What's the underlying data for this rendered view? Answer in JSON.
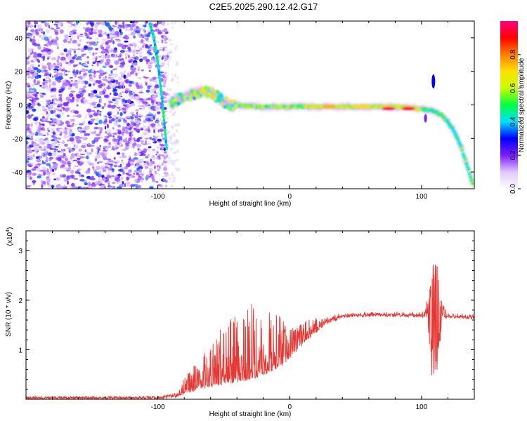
{
  "title": "C2E5.2025.290.12.42.G17",
  "chart_data": [
    {
      "type": "heatmap",
      "name": "spectrogram",
      "xlabel": "Height of straight line (km)",
      "ylabel": "Frequency (Hz)",
      "xlim": [
        -200,
        140
      ],
      "ylim": [
        -50,
        50
      ],
      "xticks": [
        -100,
        0,
        100
      ],
      "yticks": [
        -40,
        -20,
        0,
        20,
        40
      ],
      "colorbar": {
        "label": "Normalized spectral amplitude",
        "range": [
          0,
          1
        ],
        "ticks": [
          "0.0",
          "0.2",
          "0.4",
          "0.6",
          "0.8"
        ],
        "stops": [
          "#ffffff",
          "#e0c8ff",
          "#7a1cff",
          "#0000ff",
          "#00e0ff",
          "#00ff40",
          "#c8ff00",
          "#ffe000",
          "#ff8000",
          "#ff0000",
          "#ff0080"
        ]
      },
      "noise_region_km": [
        -200,
        -96
      ],
      "ridge": {
        "description": "frequency of dominant signal vs height",
        "x": [
          -90,
          -80,
          -70,
          -62,
          -55,
          -50,
          -45,
          -40,
          -30,
          -20,
          -10,
          0,
          20,
          40,
          60,
          80,
          95,
          105,
          110,
          115,
          120,
          125,
          130,
          135,
          139
        ],
        "y": [
          1,
          5,
          7,
          8,
          5,
          2,
          0,
          0,
          -1,
          -1,
          -1,
          -1,
          -1,
          -1,
          -1,
          -1,
          -2,
          -3,
          -4,
          -6,
          -10,
          -16,
          -25,
          -37,
          -48
        ]
      },
      "steep_line": {
        "x": [
          -106,
          -103,
          -100,
          -97,
          -95,
          -93
        ],
        "y": [
          48,
          40,
          25,
          5,
          -12,
          -28
        ]
      },
      "hot_spots": [
        {
          "x": 30,
          "y": -1,
          "amp": 0.75
        },
        {
          "x": 55,
          "y": -1,
          "amp": 0.7
        },
        {
          "x": 75,
          "y": -2,
          "amp": 0.95
        },
        {
          "x": 90,
          "y": -2,
          "amp": 0.9
        }
      ]
    },
    {
      "type": "line",
      "name": "snr",
      "xlabel": "Height of straight line (km)",
      "ylabel": "SNR (10 * v/v)",
      "y_multiplier": "(x10^4)",
      "y_multiplier_base": "(x10",
      "y_multiplier_exp": "4",
      "y_multiplier_close": ")",
      "xlim": [
        -200,
        140
      ],
      "ylim": [
        0,
        3.4
      ],
      "xticks": [
        -100,
        0,
        100
      ],
      "yticks": [
        1,
        2,
        3
      ],
      "color": "#e53935",
      "envelope": {
        "x": [
          -200,
          -100,
          -95,
          -85,
          -80,
          -70,
          -60,
          -50,
          -40,
          -30,
          -20,
          -10,
          0,
          10,
          20,
          30,
          40,
          60,
          80,
          100,
          105,
          108,
          110,
          112,
          115,
          120,
          140
        ],
        "base": [
          0.02,
          0.02,
          0.03,
          0.05,
          0.1,
          0.2,
          0.25,
          0.3,
          0.35,
          0.4,
          0.5,
          0.6,
          0.8,
          1.1,
          1.35,
          1.55,
          1.65,
          1.68,
          1.68,
          1.66,
          1.65,
          1.6,
          1.65,
          1.6,
          1.64,
          1.65,
          1.63
        ],
        "spike": [
          0.0,
          0.0,
          0.02,
          0.05,
          0.25,
          0.4,
          0.6,
          0.9,
          1.0,
          1.1,
          1.0,
          0.8,
          0.5,
          0.35,
          0.2,
          0.08,
          0.05,
          0.04,
          0.04,
          0.05,
          0.3,
          1.6,
          1.5,
          1.4,
          0.3,
          0.05,
          0.04
        ]
      }
    }
  ]
}
